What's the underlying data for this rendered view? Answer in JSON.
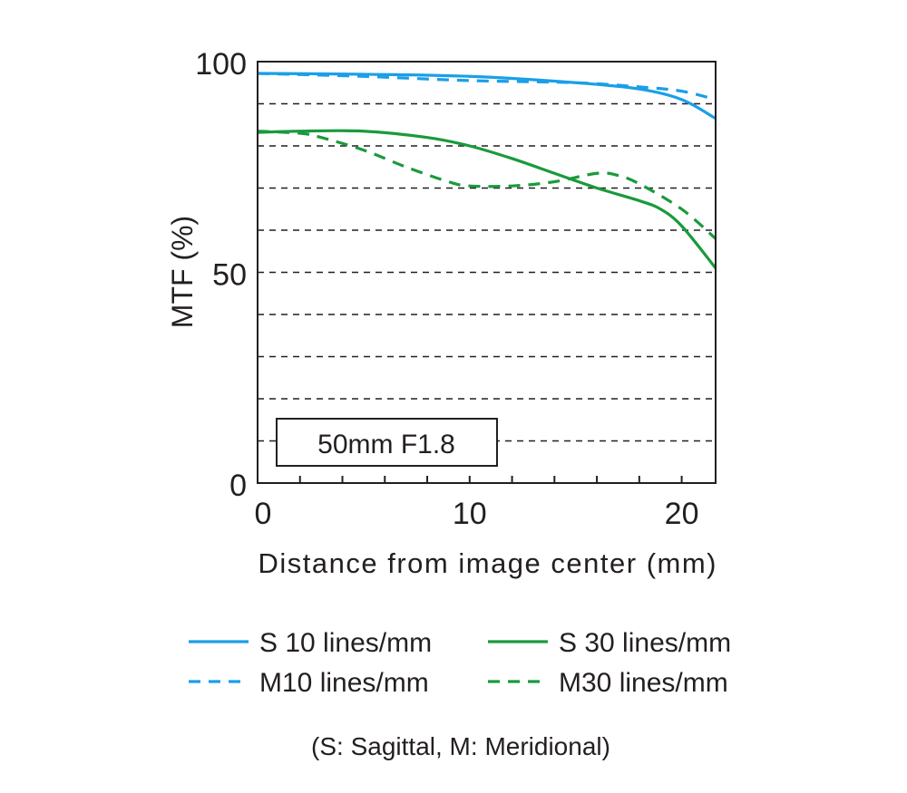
{
  "chart_data": {
    "type": "line",
    "title": "",
    "annotation": "50mm F1.8",
    "xlabel": "Distance from image center (mm)",
    "ylabel": "MTF (%)",
    "xlim": [
      0,
      21.6
    ],
    "ylim": [
      0,
      100
    ],
    "x_ticks": [
      0,
      10,
      20
    ],
    "x_tick_labels": [
      "0",
      "10",
      "20"
    ],
    "x_minor_tick_step": 2,
    "y_ticks": [
      0,
      50,
      100
    ],
    "y_tick_labels": [
      "0",
      "50",
      "100"
    ],
    "grid": "dashed horizontal every 10%",
    "legend_placement": "bottom",
    "legend_note": "(S: Sagittal, M: Meridional)",
    "colors": {
      "blue": "#1a9fe8",
      "green": "#1a9a3c"
    },
    "series": [
      {
        "name": "S 10 lines/mm",
        "color": "#1a9fe8",
        "dash": false,
        "x": [
          0,
          5,
          10,
          15,
          18,
          20,
          21.6
        ],
        "y": [
          97.2,
          97,
          96.5,
          95,
          93.5,
          91,
          86.5
        ]
      },
      {
        "name": "M10 lines/mm",
        "color": "#1a9fe8",
        "dash": true,
        "x": [
          0,
          5,
          10,
          15,
          18,
          20,
          21.6
        ],
        "y": [
          97.2,
          96.5,
          95.5,
          95,
          94,
          93,
          91
        ]
      },
      {
        "name": "S 30 lines/mm",
        "color": "#1a9a3c",
        "dash": false,
        "x": [
          0,
          2,
          5,
          8,
          10,
          12,
          14,
          16,
          18,
          19,
          20,
          21.6
        ],
        "y": [
          83.2,
          83.5,
          83.5,
          82,
          80,
          77,
          73.5,
          70,
          67,
          65,
          61,
          51
        ]
      },
      {
        "name": "M30 lines/mm",
        "color": "#1a9a3c",
        "dash": true,
        "x": [
          0,
          2,
          3,
          5,
          7,
          9,
          10,
          12,
          14,
          16,
          17,
          18,
          20,
          21.6
        ],
        "y": [
          83.5,
          83,
          82,
          79,
          75,
          71.5,
          70.5,
          70.5,
          71.5,
          73.5,
          73,
          71,
          65,
          58
        ]
      }
    ]
  }
}
